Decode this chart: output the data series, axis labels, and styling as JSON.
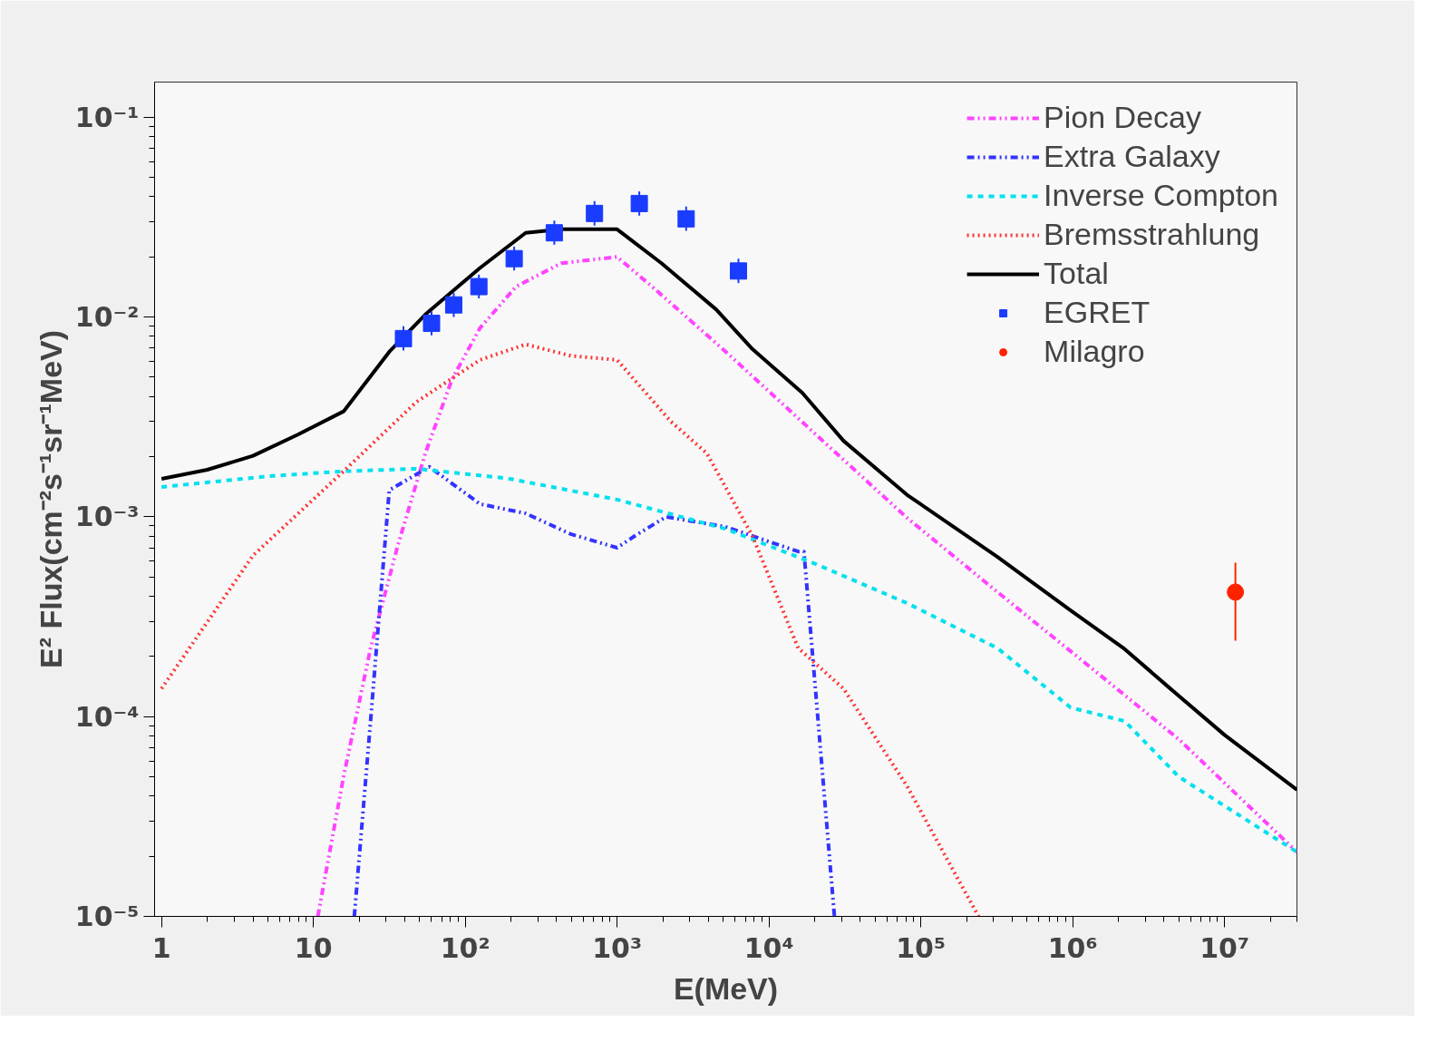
{
  "chart_data": {
    "type": "line",
    "xlabel": "E(MeV)",
    "ylabel": "E² Flux(cm⁻²s⁻¹sr⁻¹MeV)",
    "log": "xy",
    "grid": false,
    "legend": "top right",
    "xlim": [
      0.9,
      30000000
    ],
    "ylim": [
      1e-05,
      0.15
    ],
    "xticks": [
      1,
      10,
      {
        "value": 100,
        "label": "10²"
      },
      {
        "value": 1000,
        "label": "10³"
      },
      {
        "value": 10000,
        "label": "10⁴"
      },
      {
        "value": 100000,
        "label": "10⁵"
      },
      {
        "value": 1000000,
        "label": "10⁶"
      },
      {
        "value": 10000000,
        "label": "10⁷"
      }
    ],
    "yticks": [
      {
        "value": 1e-05,
        "label": "10⁻⁵"
      },
      {
        "value": 0.0001,
        "label": "10⁻⁴"
      },
      {
        "value": 0.001,
        "label": "10⁻³"
      },
      {
        "value": 0.01,
        "label": "10⁻²"
      },
      {
        "value": 0.1,
        "label": "10⁻¹"
      }
    ],
    "series": [
      {
        "name": "Pion Decay",
        "line_style": "dashdot",
        "color": "#ff44ff",
        "x": [
          10.7,
          15.8,
          23.8,
          36,
          54.6,
          82,
          125,
          216,
          430,
          1000,
          1700,
          5200,
          20400,
          81000,
          320000,
          1270000,
          5000000,
          30000000
        ],
        "values": [
          1e-05,
          5e-05,
          0.00022,
          0.00072,
          0.00208,
          0.0049,
          0.0088,
          0.0142,
          0.0186,
          0.02,
          0.0142,
          0.0067,
          0.00258,
          0.00099,
          0.00042,
          0.00018,
          7.7e-05,
          2.1e-05
        ]
      },
      {
        "name": "Extra Galaxy",
        "line_style": "dashdot",
        "color": "#3333ff",
        "x": [
          18.6,
          23.8,
          31.6,
          58,
          125,
          250,
          495,
          1000,
          1300,
          2100,
          5200,
          15600,
          17000,
          27000
        ],
        "values": [
          1e-05,
          9.5e-05,
          0.00136,
          0.00178,
          0.00116,
          0.00104,
          0.00082,
          0.0007,
          0.0008,
          0.001,
          0.00089,
          0.00067,
          0.00067,
          1e-05
        ]
      },
      {
        "name": "Inverse Compton",
        "line_style": "dashed",
        "color": "#00e0ee",
        "x": [
          1,
          5.2,
          15.8,
          47.5,
          188,
          1000,
          5200,
          20400,
          81000,
          320000,
          970000,
          2200000,
          5000000,
          30000000
        ],
        "values": [
          0.00141,
          0.0016,
          0.00169,
          0.00174,
          0.00156,
          0.00122,
          0.00087,
          0.00058,
          0.00037,
          0.00022,
          0.000111,
          9.5e-05,
          5e-05,
          2.1e-05
        ]
      },
      {
        "name": "Bremsstrahlung",
        "line_style": "dotted",
        "color": "#ff3333",
        "x": [
          1,
          4,
          15.8,
          47.5,
          125,
          250,
          495,
          1000,
          2260,
          3900,
          7800,
          15600,
          31000,
          81000,
          240000
        ],
        "values": [
          0.000138,
          0.00064,
          0.00169,
          0.00375,
          0.0061,
          0.0073,
          0.0064,
          0.0061,
          0.003,
          0.00208,
          0.0008,
          0.00022,
          0.000138,
          4.5e-05,
          1e-05
        ]
      },
      {
        "name": "Total",
        "line_style": "solid",
        "color": "#000000",
        "x": [
          1,
          2,
          4,
          7.9,
          15.8,
          31.6,
          54.6,
          125,
          250,
          430,
          1000,
          1960,
          4500,
          7800,
          16600,
          31000,
          81000,
          320000,
          970000,
          2200000,
          4400000,
          10000000,
          30000000
        ],
        "values": [
          0.00155,
          0.00172,
          0.00202,
          0.00258,
          0.00337,
          0.0067,
          0.0103,
          0.0176,
          0.0264,
          0.0275,
          0.0275,
          0.0186,
          0.0109,
          0.0069,
          0.00417,
          0.0024,
          0.00129,
          0.00063,
          0.00034,
          0.000218,
          0.000138,
          8.1e-05,
          4.3e-05
        ]
      },
      {
        "name": "EGRET",
        "type": "scatter",
        "marker": "square",
        "color": "#1a3cff",
        "x": [
          39.2,
          60,
          84,
          123,
          210,
          386,
          710,
          1400,
          2850,
          6300
        ],
        "values": [
          0.0078,
          0.0093,
          0.0115,
          0.0142,
          0.0196,
          0.0264,
          0.033,
          0.037,
          0.031,
          0.017
        ],
        "errors": [
          [
            0.0068,
            0.009
          ],
          [
            0.0081,
            0.0107
          ],
          [
            0.01,
            0.0132
          ],
          [
            0.0124,
            0.0163
          ],
          [
            0.0171,
            0.0225
          ],
          [
            0.023,
            0.0304
          ],
          [
            0.0287,
            0.038
          ],
          [
            0.0322,
            0.0426
          ],
          [
            0.027,
            0.0357
          ],
          [
            0.0148,
            0.0196
          ]
        ]
      },
      {
        "name": "Milagro",
        "type": "scatter",
        "marker": "circle",
        "color": "#ff2200",
        "x": [
          11800000
        ],
        "values": [
          0.00042
        ],
        "errors": [
          [
            0.00024,
            0.00059
          ]
        ]
      }
    ]
  }
}
